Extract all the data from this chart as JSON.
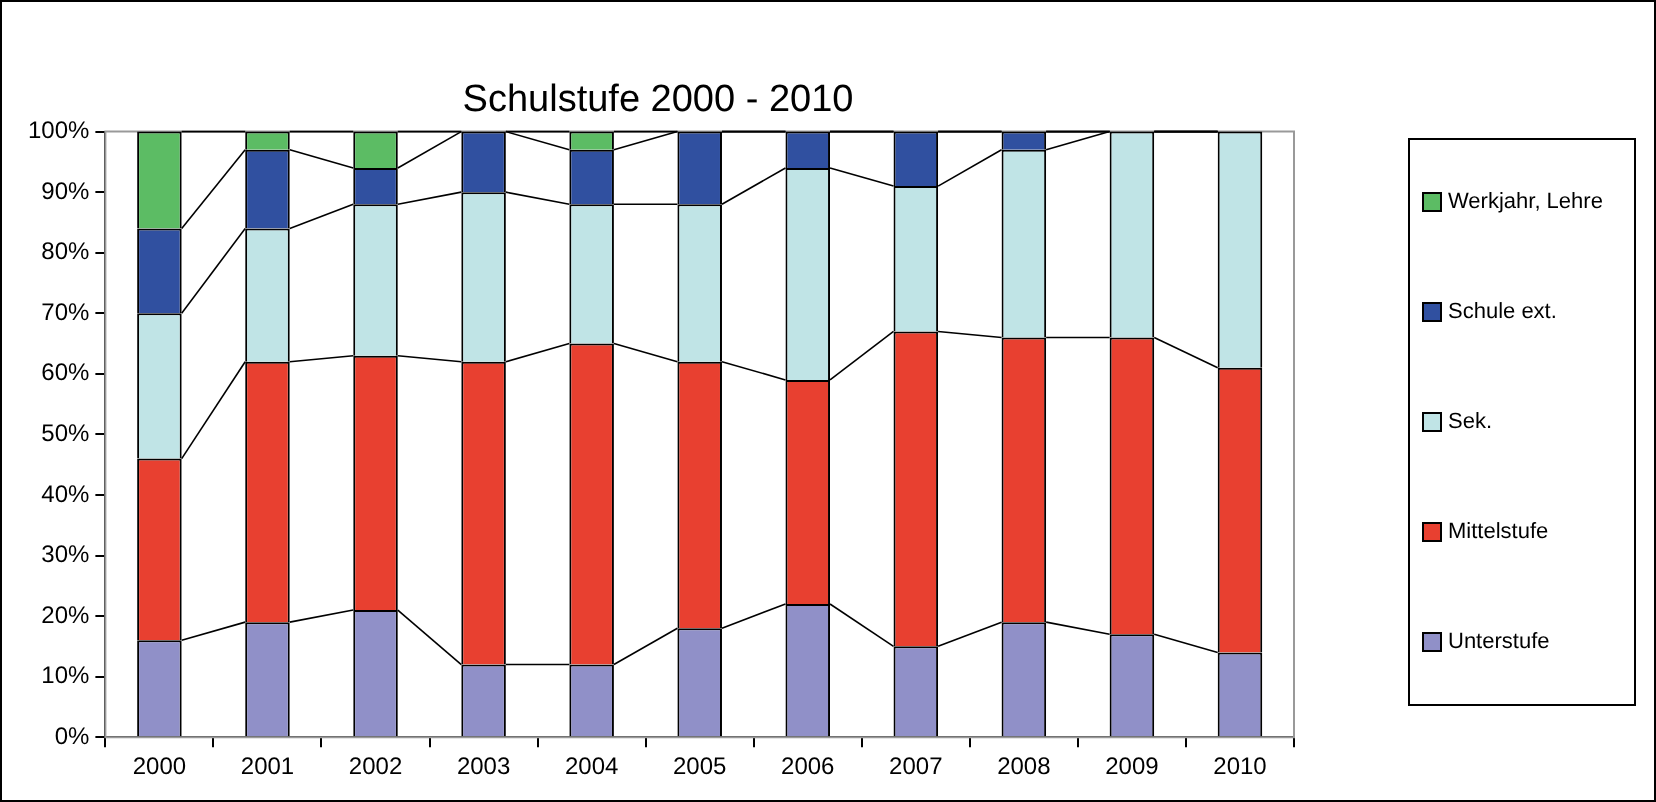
{
  "chart_data": {
    "type": "bar",
    "title": "Schulstufe 2000 - 2010",
    "stacked": true,
    "grid": false,
    "legend": "right",
    "categories": [
      "2000",
      "2001",
      "2002",
      "2003",
      "2004",
      "2005",
      "2006",
      "2007",
      "2008",
      "2009",
      "2010"
    ],
    "ylim": [
      0,
      100
    ],
    "yticks": [
      {
        "value": 0,
        "label": "0%"
      },
      {
        "value": 10,
        "label": "10%"
      },
      {
        "value": 20,
        "label": "20%"
      },
      {
        "value": 30,
        "label": "30%"
      },
      {
        "value": 40,
        "label": "40%"
      },
      {
        "value": 50,
        "label": "50%"
      },
      {
        "value": 60,
        "label": "60%"
      },
      {
        "value": 70,
        "label": "70%"
      },
      {
        "value": 80,
        "label": "80%"
      },
      {
        "value": 90,
        "label": "90%"
      },
      {
        "value": 100,
        "label": "100%"
      }
    ],
    "series": [
      {
        "name": "Unterstufe",
        "color": "#9090c8",
        "values": [
          16,
          19,
          21,
          12,
          12,
          18,
          22,
          15,
          19,
          17,
          14
        ]
      },
      {
        "name": "Mittelstufe",
        "color": "#e84030",
        "values": [
          30,
          43,
          42,
          50,
          53,
          44,
          37,
          52,
          47,
          49,
          47
        ]
      },
      {
        "name": "Sek.",
        "color": "#c0e4e6",
        "values": [
          24,
          22,
          25,
          28,
          23,
          26,
          35,
          24,
          31,
          34,
          39
        ]
      },
      {
        "name": "Schule ext.",
        "color": "#3050a0",
        "values": [
          14,
          13,
          6,
          10,
          9,
          12,
          6,
          9,
          3,
          0,
          0
        ]
      },
      {
        "name": "Werkjahr, Lehre",
        "color": "#5cbc64",
        "values": [
          16,
          3,
          6,
          0,
          3,
          0,
          0,
          0,
          0,
          0,
          0
        ]
      }
    ]
  }
}
